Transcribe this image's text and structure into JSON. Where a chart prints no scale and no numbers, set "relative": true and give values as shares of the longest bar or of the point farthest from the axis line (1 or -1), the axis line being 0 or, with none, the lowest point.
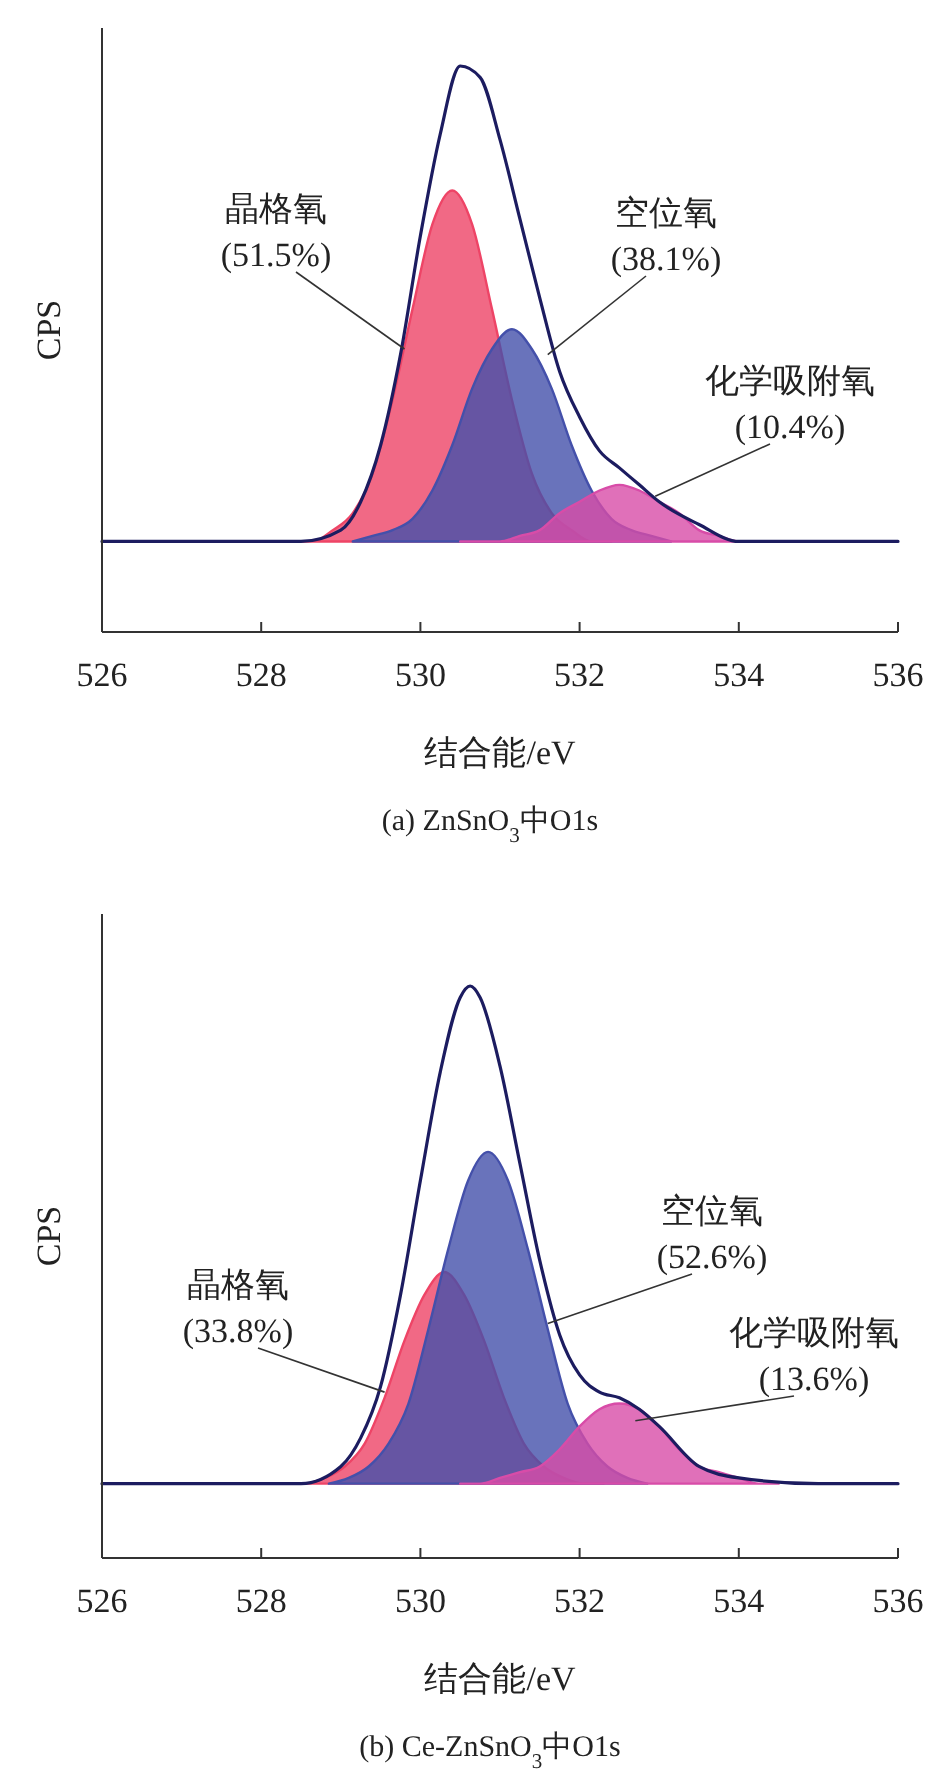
{
  "chart_data": [
    {
      "type": "line",
      "title": "(a) ZnSnO$_{3}$中O1s",
      "xlabel": "结合能/eV",
      "ylabel": "CPS",
      "relative": true,
      "xlim": [
        526,
        536
      ],
      "xticks": [
        526,
        528,
        530,
        532,
        534,
        536
      ],
      "series": [
        {
          "type": "area",
          "color": "#ee4466",
          "x": [
            528.4,
            528.65,
            528.9,
            529.15,
            529.4,
            529.65,
            529.9,
            530.15,
            530.4,
            530.65,
            530.9,
            531.15,
            531.4,
            531.65,
            531.9,
            532.15,
            532.4
          ],
          "values": [
            0.16,
            0.16,
            0.18,
            0.21,
            0.28,
            0.41,
            0.57,
            0.72,
            0.78,
            0.72,
            0.57,
            0.41,
            0.28,
            0.21,
            0.18,
            0.16,
            0.16
          ]
        },
        {
          "type": "area",
          "color": "#4450aa",
          "x": [
            529.15,
            529.4,
            529.65,
            529.9,
            530.15,
            530.4,
            530.65,
            530.9,
            531.15,
            531.4,
            531.65,
            531.9,
            532.15,
            532.4,
            532.65,
            532.9,
            533.15
          ],
          "values": [
            0.16,
            0.17,
            0.18,
            0.2,
            0.25,
            0.33,
            0.43,
            0.5,
            0.535,
            0.5,
            0.43,
            0.33,
            0.25,
            0.2,
            0.18,
            0.17,
            0.16
          ]
        },
        {
          "type": "area",
          "color": "#d84ca8",
          "x": [
            530.5,
            530.75,
            531,
            531.25,
            531.5,
            531.75,
            532,
            532.25,
            532.5,
            532.75,
            533,
            533.25,
            533.5,
            533.75,
            534,
            534.25,
            534.5
          ],
          "values": [
            0.16,
            0.16,
            0.16,
            0.17,
            0.18,
            0.21,
            0.23,
            0.25,
            0.26,
            0.25,
            0.23,
            0.21,
            0.18,
            0.17,
            0.16,
            0.16,
            0.16
          ]
        },
        {
          "type": "line",
          "color": "#1c1c60",
          "x": [
            526,
            527,
            528,
            528.5,
            529,
            529.25,
            529.5,
            529.75,
            530,
            530.25,
            530.5,
            530.75,
            531,
            531.25,
            531.5,
            531.75,
            532,
            532.25,
            532.5,
            532.75,
            533,
            533.5,
            534,
            535,
            536
          ],
          "values": [
            0.16,
            0.16,
            0.16,
            0.16,
            0.18,
            0.23,
            0.33,
            0.49,
            0.7,
            0.88,
            1.0,
            0.98,
            0.87,
            0.73,
            0.59,
            0.46,
            0.38,
            0.32,
            0.29,
            0.26,
            0.23,
            0.19,
            0.16,
            0.16,
            0.16
          ]
        }
      ],
      "annotations": [
        {
          "text": "晶格氧\n(51.5%)",
          "x": 529.8,
          "y": 0.5
        },
        {
          "text": "空位氧\n(38.1%)",
          "x": 531.6,
          "y": 0.49
        },
        {
          "text": "化学吸附氧\n(10.4%)",
          "x": 532.95,
          "y": 0.24
        }
      ]
    },
    {
      "type": "line",
      "title": "(b) Ce-ZnSnO$_{3}$中O1s",
      "xlabel": "结合能/eV",
      "ylabel": "CPS",
      "relative": true,
      "xlim": [
        526,
        536
      ],
      "xticks": [
        526,
        528,
        530,
        532,
        534,
        536
      ],
      "series": [
        {
          "type": "area",
          "color": "#ee4466",
          "x": [
            528.3,
            528.55,
            528.8,
            529.05,
            529.3,
            529.55,
            529.8,
            530.05,
            530.3,
            530.55,
            530.8,
            531.05,
            531.3,
            531.55,
            531.8,
            532.05,
            532.3
          ],
          "values": [
            0.13,
            0.13,
            0.14,
            0.16,
            0.2,
            0.28,
            0.38,
            0.46,
            0.5,
            0.46,
            0.38,
            0.28,
            0.2,
            0.16,
            0.14,
            0.13,
            0.13
          ]
        },
        {
          "type": "area",
          "color": "#4450aa",
          "x": [
            528.85,
            529.1,
            529.35,
            529.6,
            529.85,
            530.1,
            530.35,
            530.6,
            530.85,
            531.1,
            531.35,
            531.6,
            531.85,
            532.1,
            532.35,
            532.6,
            532.85
          ],
          "values": [
            0.13,
            0.14,
            0.16,
            0.2,
            0.27,
            0.4,
            0.54,
            0.66,
            0.71,
            0.66,
            0.54,
            0.4,
            0.27,
            0.2,
            0.16,
            0.14,
            0.13
          ]
        },
        {
          "type": "area",
          "color": "#d84ca8",
          "x": [
            530.5,
            530.75,
            531,
            531.25,
            531.5,
            531.75,
            532,
            532.25,
            532.5,
            532.75,
            533,
            533.25,
            533.5,
            533.75,
            534,
            534.25,
            534.5
          ],
          "values": [
            0.13,
            0.13,
            0.14,
            0.15,
            0.16,
            0.19,
            0.23,
            0.26,
            0.27,
            0.26,
            0.23,
            0.19,
            0.16,
            0.15,
            0.14,
            0.13,
            0.13
          ]
        },
        {
          "type": "line",
          "color": "#1c1c60",
          "x": [
            526,
            527,
            528,
            528.5,
            529,
            529.25,
            529.5,
            529.75,
            530,
            530.25,
            530.5,
            530.625,
            530.75,
            531,
            531.25,
            531.5,
            531.75,
            532,
            532.25,
            532.5,
            532.75,
            533,
            533.5,
            534,
            535,
            536
          ],
          "values": [
            0.13,
            0.13,
            0.13,
            0.13,
            0.16,
            0.21,
            0.3,
            0.46,
            0.66,
            0.85,
            0.98,
            1.0,
            0.98,
            0.86,
            0.69,
            0.52,
            0.39,
            0.32,
            0.29,
            0.28,
            0.26,
            0.23,
            0.16,
            0.14,
            0.13,
            0.13
          ]
        }
      ],
      "annotations": [
        {
          "text": "晶格氧\n(33.8%)",
          "x": 529.55,
          "y": 0.29
        },
        {
          "text": "空位氧\n(52.6%)",
          "x": 531.6,
          "y": 0.41
        },
        {
          "text": "化学吸附氧\n(13.6%)",
          "x": 532.7,
          "y": 0.24
        }
      ]
    }
  ]
}
